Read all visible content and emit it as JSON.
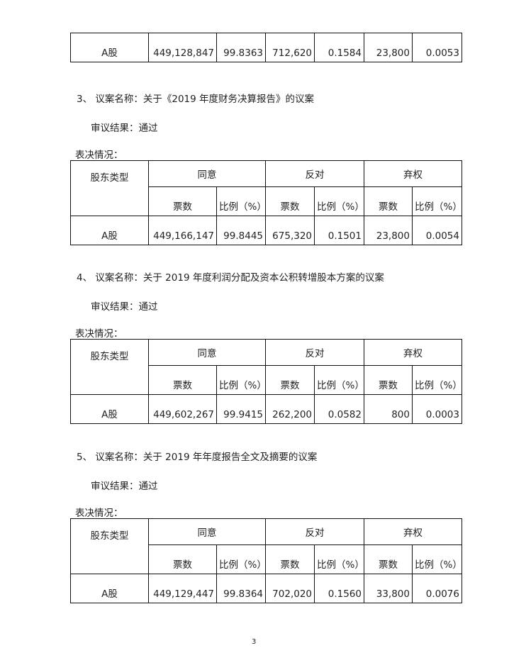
{
  "headers": {
    "type": "股东类型",
    "agree": "同意",
    "against": "反对",
    "abstain": "弃权",
    "votes": "票数",
    "ratio": "比例（%）"
  },
  "vote_label": "表决情况：",
  "top_row": {
    "type": "A股",
    "values": [
      "449,128,847",
      "99.8363",
      "712,620",
      "0.1584",
      "23,800",
      "0.0053"
    ]
  },
  "sections": [
    {
      "title": "3、 议案名称：关于《2019 年度财务决算报告》的议案",
      "result": "审议结果：通过",
      "row": {
        "type": "A股",
        "values": [
          "449,166,147",
          "99.8445",
          "675,320",
          "0.1501",
          "23,800",
          "0.0054"
        ]
      }
    },
    {
      "title": "4、 议案名称：关于 2019 年度利润分配及资本公积转增股本方案的议案",
      "result": "审议结果：通过",
      "row": {
        "type": "A股",
        "values": [
          "449,602,267",
          "99.9415",
          "262,200",
          "0.0582",
          "800",
          "0.0003"
        ]
      }
    },
    {
      "title": "5、 议案名称：关于 2019 年年度报告全文及摘要的议案",
      "result": "审议结果：通过",
      "row": {
        "type": "A股",
        "values": [
          "449,129,447",
          "99.8364",
          "702,020",
          "0.1560",
          "33,800",
          "0.0076"
        ]
      }
    }
  ],
  "page_number": "3"
}
